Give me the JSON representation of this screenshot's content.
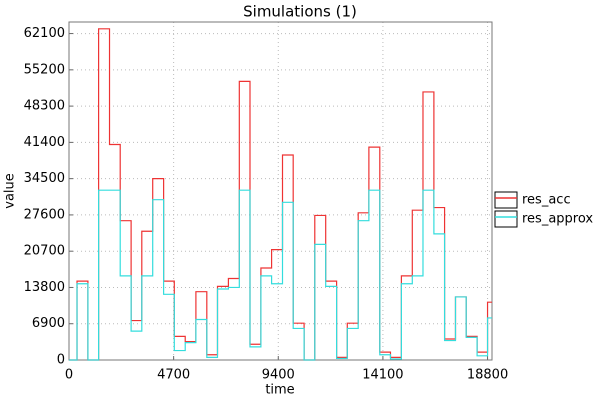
{
  "chart_data": {
    "type": "step",
    "title": "Simulations (1)",
    "x_label": "time",
    "y_label": "value",
    "x": [
      0,
      360,
      850,
      1330,
      1820,
      2300,
      2790,
      3270,
      3760,
      4250,
      4730,
      5220,
      5700,
      6190,
      6670,
      7160,
      7650,
      8130,
      8620,
      9100,
      9590,
      10070,
      10560,
      11040,
      11530,
      12020,
      12500,
      12990,
      13470,
      13960,
      14440,
      14930,
      15420,
      15900,
      16390,
      16870,
      17360,
      17840,
      18330,
      18800
    ],
    "series": [
      {
        "name": "res_acc",
        "color": "#ee3333",
        "values": [
          0,
          15000,
          0,
          63000,
          41000,
          26500,
          7500,
          24500,
          34500,
          15000,
          4500,
          3500,
          13000,
          1000,
          14000,
          15500,
          53000,
          3000,
          17500,
          21000,
          39000,
          7000,
          0,
          27500,
          15000,
          500,
          7000,
          28000,
          40500,
          1500,
          500,
          16000,
          28500,
          51000,
          29000,
          4000,
          12000,
          4500,
          1500,
          11000
        ]
      },
      {
        "name": "res_approx",
        "color": "#33dddd",
        "values": [
          0,
          14500,
          0,
          32300,
          32300,
          16000,
          5500,
          16000,
          30500,
          12500,
          1800,
          3300,
          7700,
          500,
          13500,
          13800,
          32300,
          2500,
          16000,
          14500,
          30000,
          6000,
          0,
          22000,
          14000,
          300,
          6000,
          26500,
          32300,
          1000,
          200,
          14500,
          16000,
          32300,
          24000,
          3700,
          12000,
          4300,
          800,
          8000
        ]
      }
    ],
    "xlim": [
      0,
      19000
    ],
    "ylim": [
      0,
      64300
    ],
    "xticks": [
      0,
      4700,
      9400,
      14100,
      18800
    ],
    "yticks": [
      0,
      6900,
      13800,
      20700,
      27600,
      34500,
      41400,
      48300,
      55200,
      62100
    ],
    "grid": true,
    "legend": "right"
  }
}
